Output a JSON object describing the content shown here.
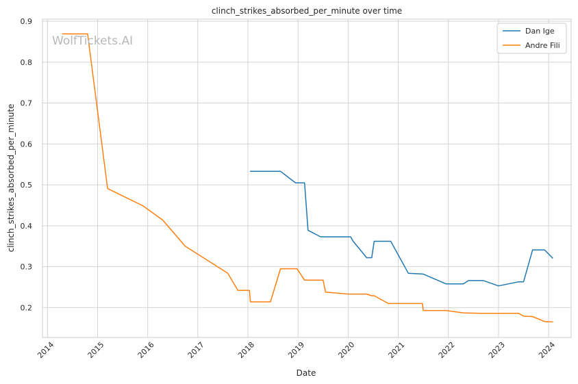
{
  "chart_data": {
    "type": "line",
    "title": "clinch_strikes_absorbed_per_minute over time",
    "xlabel": "Date",
    "ylabel": "clinch_strikes_absorbed_per_minute",
    "watermark": "WolfTickets.AI",
    "xlim": [
      2013.9,
      2024.45
    ],
    "ylim": [
      0.127,
      0.905
    ],
    "x_ticks": [
      {
        "value": 2014,
        "label": "2014"
      },
      {
        "value": 2015,
        "label": "2015"
      },
      {
        "value": 2016,
        "label": "2016"
      },
      {
        "value": 2017,
        "label": "2017"
      },
      {
        "value": 2018,
        "label": "2018"
      },
      {
        "value": 2019,
        "label": "2019"
      },
      {
        "value": 2020,
        "label": "2020"
      },
      {
        "value": 2021,
        "label": "2021"
      },
      {
        "value": 2022,
        "label": "2022"
      },
      {
        "value": 2023,
        "label": "2023"
      },
      {
        "value": 2024,
        "label": "2024"
      }
    ],
    "y_ticks": [
      {
        "value": 0.2,
        "label": "0.2"
      },
      {
        "value": 0.3,
        "label": "0.3"
      },
      {
        "value": 0.4,
        "label": "0.4"
      },
      {
        "value": 0.5,
        "label": "0.5"
      },
      {
        "value": 0.6,
        "label": "0.6"
      },
      {
        "value": 0.7,
        "label": "0.7"
      },
      {
        "value": 0.8,
        "label": "0.8"
      },
      {
        "value": 0.9,
        "label": "0.9"
      }
    ],
    "grid": true,
    "legend_position": "top-right",
    "series": [
      {
        "name": "Dan Ige",
        "color": "#1f77b4",
        "points": [
          [
            2018.05,
            0.533
          ],
          [
            2018.65,
            0.533
          ],
          [
            2018.95,
            0.505
          ],
          [
            2019.13,
            0.505
          ],
          [
            2019.2,
            0.389
          ],
          [
            2019.45,
            0.373
          ],
          [
            2020.05,
            0.373
          ],
          [
            2020.1,
            0.362
          ],
          [
            2020.37,
            0.322
          ],
          [
            2020.47,
            0.322
          ],
          [
            2020.52,
            0.362
          ],
          [
            2020.85,
            0.362
          ],
          [
            2021.2,
            0.284
          ],
          [
            2021.5,
            0.282
          ],
          [
            2021.95,
            0.258
          ],
          [
            2022.3,
            0.258
          ],
          [
            2022.4,
            0.266
          ],
          [
            2022.7,
            0.266
          ],
          [
            2023.0,
            0.253
          ],
          [
            2023.4,
            0.263
          ],
          [
            2023.5,
            0.263
          ],
          [
            2023.68,
            0.341
          ],
          [
            2023.92,
            0.341
          ],
          [
            2024.08,
            0.321
          ]
        ]
      },
      {
        "name": "Andre Fili",
        "color": "#ff7f0e",
        "points": [
          [
            2014.3,
            0.869
          ],
          [
            2014.8,
            0.869
          ],
          [
            2015.2,
            0.491
          ],
          [
            2015.9,
            0.449
          ],
          [
            2016.3,
            0.414
          ],
          [
            2016.75,
            0.35
          ],
          [
            2017.6,
            0.284
          ],
          [
            2017.8,
            0.242
          ],
          [
            2018.03,
            0.242
          ],
          [
            2018.05,
            0.214
          ],
          [
            2018.45,
            0.214
          ],
          [
            2018.65,
            0.295
          ],
          [
            2018.98,
            0.295
          ],
          [
            2019.13,
            0.267
          ],
          [
            2019.5,
            0.267
          ],
          [
            2019.55,
            0.238
          ],
          [
            2020.0,
            0.233
          ],
          [
            2020.37,
            0.233
          ],
          [
            2020.47,
            0.229
          ],
          [
            2020.52,
            0.229
          ],
          [
            2020.8,
            0.21
          ],
          [
            2021.48,
            0.21
          ],
          [
            2021.5,
            0.193
          ],
          [
            2021.95,
            0.193
          ],
          [
            2022.3,
            0.187
          ],
          [
            2022.65,
            0.186
          ],
          [
            2023.4,
            0.186
          ],
          [
            2023.5,
            0.179
          ],
          [
            2023.68,
            0.178
          ],
          [
            2023.92,
            0.166
          ],
          [
            2024.08,
            0.165
          ]
        ]
      }
    ]
  }
}
